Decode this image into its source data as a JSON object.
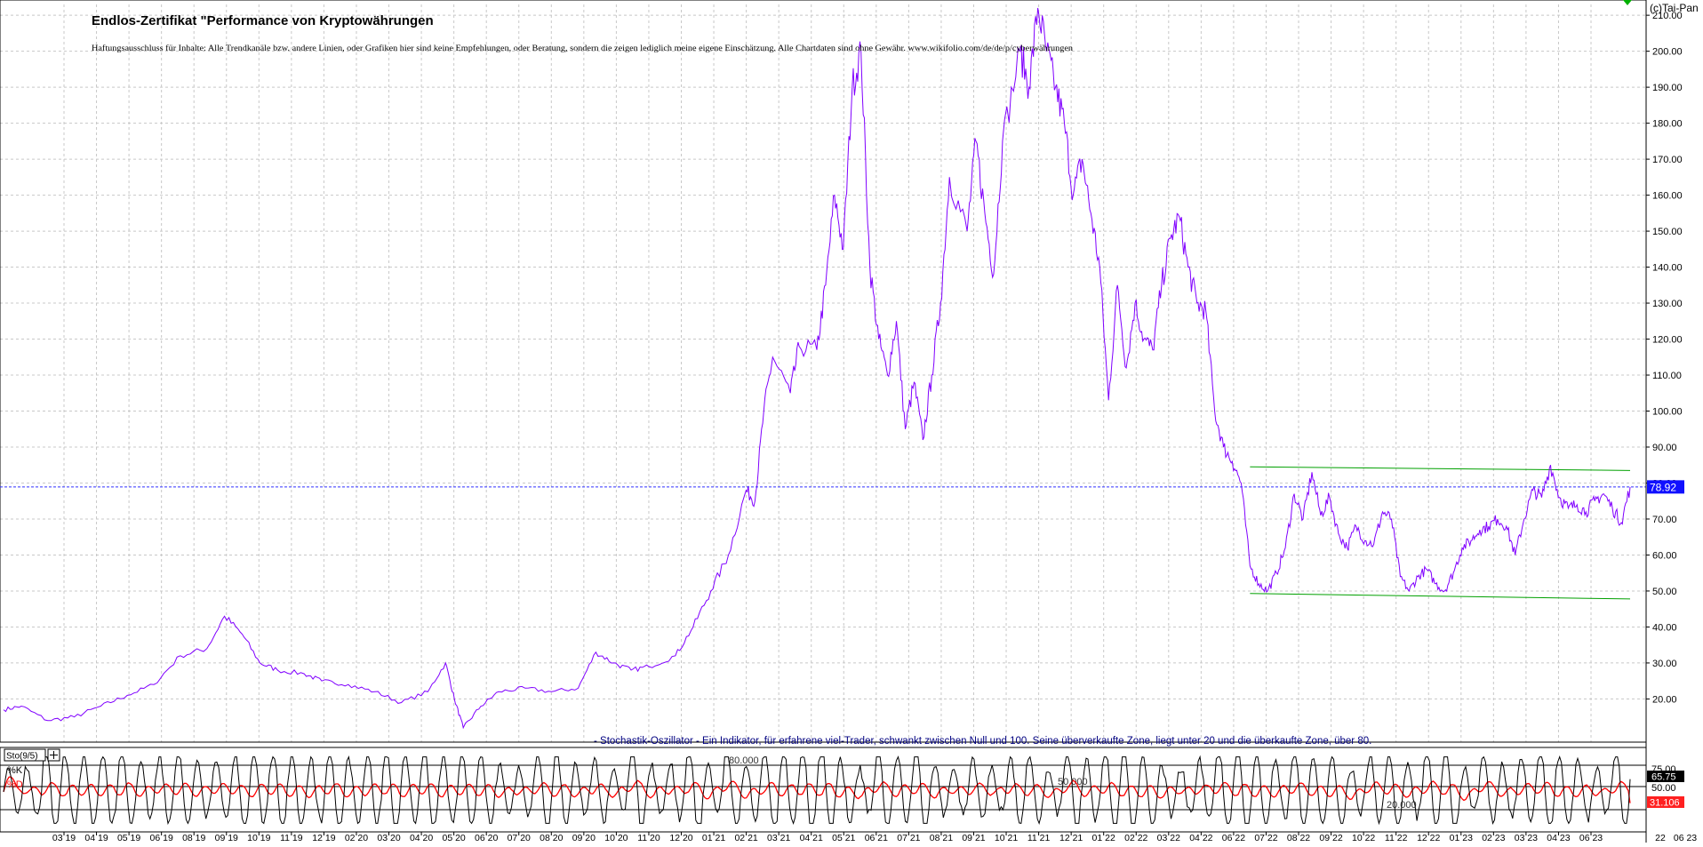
{
  "title": "Endlos-Zertifikat \"Performance von Kryptowährungen",
  "disclaimer": "Haftungsausschluss für Inhalte: Alle Trendkanäle bzw. andere Linien, oder Grafiken hier sind keine Empfehlungen, oder Beratung, sondern die zeigen lediglich meine eigene Einschätzung. Alle Chartdaten sind ohne Gewähr.  www.wikifolio.com/de/de/p/cyberwährungen",
  "copyright": "(c)Tai-Pan",
  "oscillator_note": "- Stochastik-Oszillator - Ein Indikator, für erfahrene viel-Trader, schwankt zwischen Null und 100. Seine überverkaufte Zone, liegt unter 20 und die überkaufte Zone, über 80.",
  "colors": {
    "price_line": "#8000ff",
    "channel_line": "#00a000",
    "last_price_label_bg": "#1010ff",
    "percent_k": "#000000",
    "percent_d": "#ff0000",
    "grid": "#c8c8c8"
  },
  "chart_data": [
    {
      "type": "line",
      "name": "price-panel",
      "y_ticks": [
        "20.00",
        "30.00",
        "40.00",
        "50.00",
        "60.00",
        "70.00",
        "80.00",
        "90.00",
        "100.00",
        "110.00",
        "120.00",
        "130.00",
        "140.00",
        "150.00",
        "160.00",
        "170.00",
        "180.00",
        "190.00",
        "200.00",
        "210.00"
      ],
      "ylim": [
        8,
        213
      ],
      "grid": true,
      "last_value_label": "78.92",
      "last_value": 78.92,
      "series": [
        {
          "key": "price",
          "points": [
            [
              0,
              17
            ],
            [
              2,
              18
            ],
            [
              5,
              14
            ],
            [
              8,
              15
            ],
            [
              11,
              18
            ],
            [
              14,
              21
            ],
            [
              17,
              24
            ],
            [
              20,
              32
            ],
            [
              23,
              34
            ],
            [
              25,
              43
            ],
            [
              27,
              38
            ],
            [
              29,
              30
            ],
            [
              31,
              28
            ],
            [
              34,
              27
            ],
            [
              36,
              25
            ],
            [
              39,
              24
            ],
            [
              42,
              22
            ],
            [
              45,
              19
            ],
            [
              48,
              22
            ],
            [
              50,
              30
            ],
            [
              51,
              20
            ],
            [
              52,
              12
            ],
            [
              54,
              18
            ],
            [
              56,
              22
            ],
            [
              59,
              23
            ],
            [
              62,
              22
            ],
            [
              65,
              23
            ],
            [
              67,
              33
            ],
            [
              69,
              30
            ],
            [
              71,
              28
            ],
            [
              73,
              29
            ],
            [
              76,
              32
            ],
            [
              78,
              40
            ],
            [
              80,
              50
            ],
            [
              82,
              60
            ],
            [
              84,
              78
            ],
            [
              85,
              75
            ],
            [
              86,
              100
            ],
            [
              87,
              115
            ],
            [
              89,
              105
            ],
            [
              90,
              118
            ],
            [
              92,
              117
            ],
            [
              93,
              135
            ],
            [
              94,
              160
            ],
            [
              95,
              145
            ],
            [
              96,
              190
            ],
            [
              97,
              200
            ],
            [
              98,
              140
            ],
            [
              99,
              120
            ],
            [
              100,
              110
            ],
            [
              101,
              125
            ],
            [
              102,
              95
            ],
            [
              103,
              108
            ],
            [
              104,
              92
            ],
            [
              105,
              110
            ],
            [
              106,
              130
            ],
            [
              107,
              165
            ],
            [
              109,
              150
            ],
            [
              110,
              175
            ],
            [
              111,
              155
            ],
            [
              112,
              138
            ],
            [
              113,
              175
            ],
            [
              115,
              200
            ],
            [
              116,
              190
            ],
            [
              117,
              212
            ],
            [
              118,
              200
            ],
            [
              119,
              190
            ],
            [
              120,
              180
            ],
            [
              121,
              160
            ],
            [
              122,
              170
            ],
            [
              123,
              155
            ],
            [
              124,
              140
            ],
            [
              125,
              103
            ],
            [
              126,
              135
            ],
            [
              127,
              112
            ],
            [
              128,
              130
            ],
            [
              129,
              120
            ],
            [
              130,
              117
            ],
            [
              131,
              135
            ],
            [
              132,
              148
            ],
            [
              133,
              154
            ],
            [
              134,
              140
            ],
            [
              135,
              130
            ],
            [
              136,
              128
            ],
            [
              137,
              100
            ],
            [
              138,
              90
            ],
            [
              139,
              86
            ],
            [
              140,
              80
            ],
            [
              141,
              57
            ],
            [
              142,
              52
            ],
            [
              143,
              50
            ],
            [
              144,
              55
            ],
            [
              145,
              62
            ],
            [
              146,
              77
            ],
            [
              147,
              70
            ],
            [
              148,
              83
            ],
            [
              149,
              71
            ],
            [
              150,
              76
            ],
            [
              151,
              66
            ],
            [
              152,
              62
            ],
            [
              153,
              68
            ],
            [
              154,
              64
            ],
            [
              155,
              63
            ],
            [
              156,
              72
            ],
            [
              157,
              70
            ],
            [
              158,
              54
            ],
            [
              159,
              50
            ],
            [
              160,
              54
            ],
            [
              161,
              56
            ],
            [
              162,
              52
            ],
            [
              163,
              50
            ],
            [
              164,
              55
            ],
            [
              165,
              62
            ],
            [
              166,
              64
            ],
            [
              167,
              67
            ],
            [
              168,
              68
            ],
            [
              169,
              70
            ],
            [
              170,
              68
            ],
            [
              171,
              60
            ],
            [
              172,
              70
            ],
            [
              173,
              78
            ],
            [
              174,
              76
            ],
            [
              175,
              85
            ],
            [
              176,
              76
            ],
            [
              177,
              73
            ],
            [
              178,
              74
            ],
            [
              179,
              72
            ],
            [
              180,
              75
            ],
            [
              181,
              77
            ],
            [
              182,
              73
            ],
            [
              183,
              69
            ],
            [
              184,
              78.92
            ]
          ]
        },
        {
          "key": "channel-upper",
          "points": [
            [
              141,
              84.5
            ],
            [
              184,
              83.5
            ]
          ]
        },
        {
          "key": "channel-lower",
          "points": [
            [
              141,
              49.3
            ],
            [
              184,
              47.8
            ]
          ]
        }
      ],
      "x_ticks": [
        "03 19",
        "04 19",
        "05 19",
        "06 19",
        "08 19",
        "09 19",
        "10 19",
        "11 19",
        "12 19",
        "02 20",
        "03 20",
        "04 20",
        "05 20",
        "06 20",
        "07 20",
        "08 20",
        "09 20",
        "10 20",
        "11 20",
        "12 20",
        "01 21",
        "02 21",
        "03 21",
        "04 21",
        "05 21",
        "06 21",
        "07 21",
        "08 21",
        "09 21",
        "10 21",
        "11 21",
        "12 21",
        "01 22",
        "02 22",
        "03 22",
        "04 22",
        "06 22",
        "07 22",
        "08 22",
        "09 22",
        "10 22",
        "11 22",
        "12 22",
        "01 23",
        "02 23",
        "03 23",
        "04 23",
        "06 23"
      ],
      "x_ticks_right": [
        "22",
        "06 23"
      ]
    },
    {
      "type": "line",
      "name": "stochastic-panel",
      "legend": "Sto(9/5)",
      "labels": [
        "%K",
        "%D"
      ],
      "levels": [
        "80.000",
        "50.000",
        "20.000"
      ],
      "y_ticks": [
        "75.00",
        "50.00"
      ],
      "ylim": [
        0,
        100
      ],
      "last_k_label": "65.75",
      "last_d_label": "31.106",
      "last_k": 65.75,
      "last_d": 31.106,
      "series": [
        {
          "key": "percent_k",
          "cycles": 86
        },
        {
          "key": "percent_d",
          "cycles": 86
        }
      ]
    }
  ]
}
